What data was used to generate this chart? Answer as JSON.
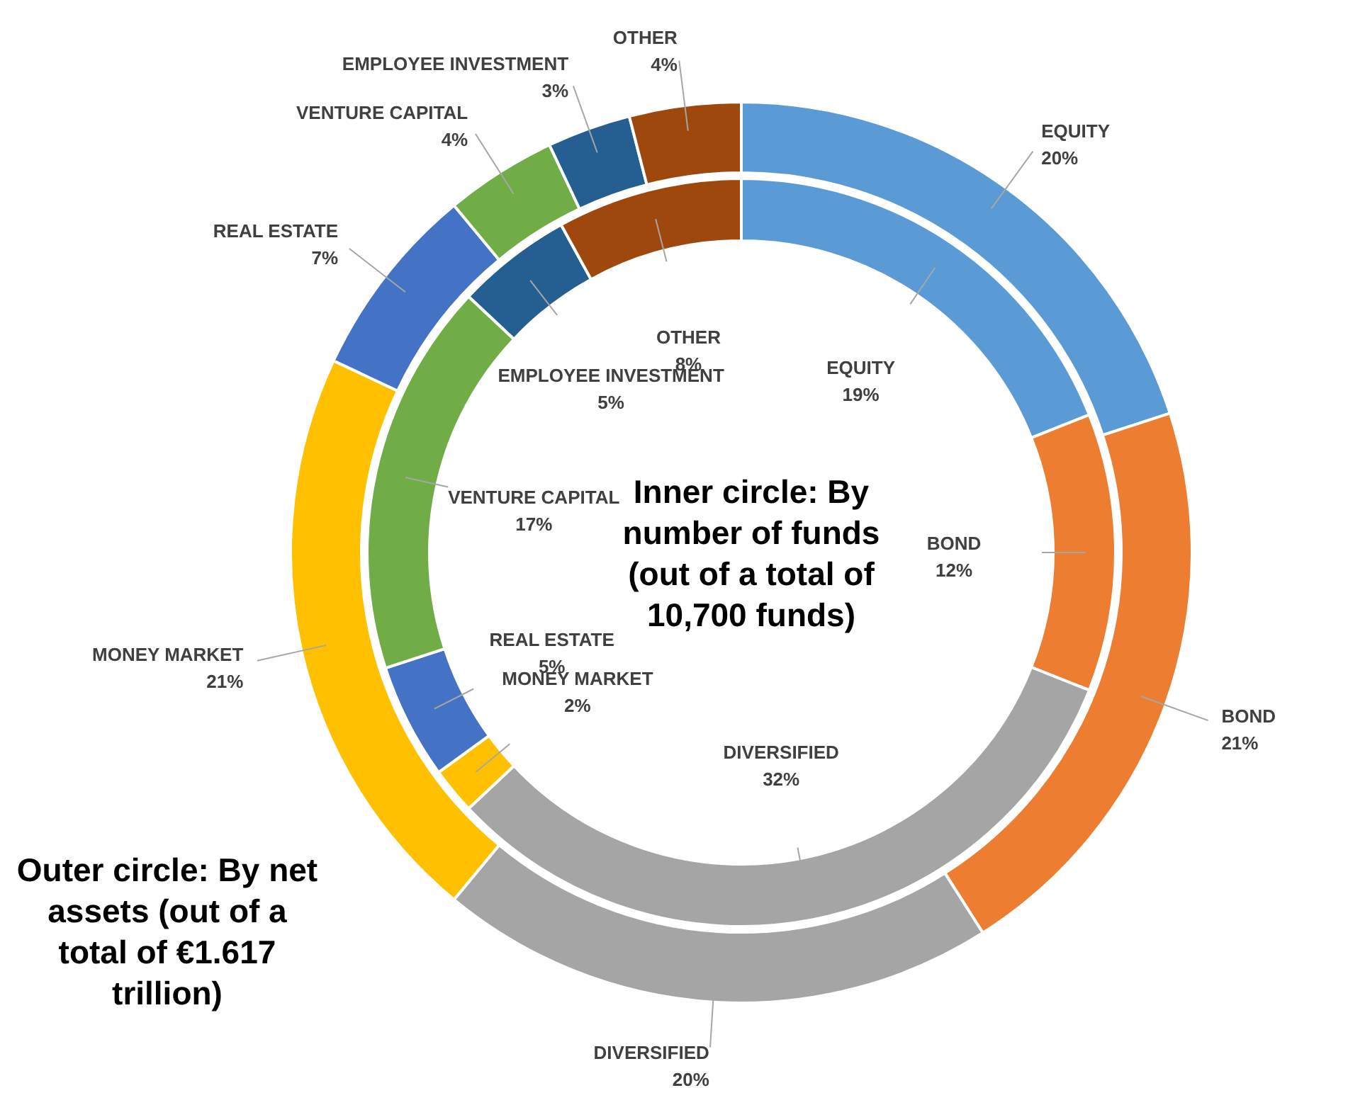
{
  "chart_data": [
    {
      "type": "donut",
      "title": "Outer circle: By net assets (out of a total of €1.617 trillion)",
      "categories": [
        "EQUITY",
        "BOND",
        "DIVERSIFIED",
        "MONEY MARKET",
        "REAL ESTATE",
        "VENTURE CAPITAL",
        "EMPLOYEE INVESTMENT",
        "OTHER"
      ],
      "values": [
        20,
        21,
        20,
        21,
        7,
        4,
        3,
        4
      ],
      "value_labels": [
        "20%",
        "21%",
        "20%",
        "21%",
        "7%",
        "4%",
        "3%",
        "4%"
      ],
      "colors": [
        "#5b9bd5",
        "#ed7d31",
        "#a5a5a5",
        "#ffc000",
        "#4472c4",
        "#70ad47",
        "#255e91",
        "#9e480e"
      ]
    },
    {
      "type": "donut",
      "title": "Inner circle: By number of funds (out of a total of 10,700 funds)",
      "categories": [
        "EQUITY",
        "BOND",
        "DIVERSIFIED",
        "MONEY MARKET",
        "REAL ESTATE",
        "VENTURE CAPITAL",
        "EMPLOYEE INVESTMENT",
        "OTHER"
      ],
      "values": [
        19,
        12,
        32,
        2,
        5,
        17,
        5,
        8
      ],
      "value_labels": [
        "19%",
        "12%",
        "32%",
        "2%",
        "5%",
        "17%",
        "5%",
        "8%"
      ],
      "colors": [
        "#5b9bd5",
        "#ed7d31",
        "#a5a5a5",
        "#ffc000",
        "#4472c4",
        "#70ad47",
        "#255e91",
        "#9e480e"
      ]
    }
  ]
}
